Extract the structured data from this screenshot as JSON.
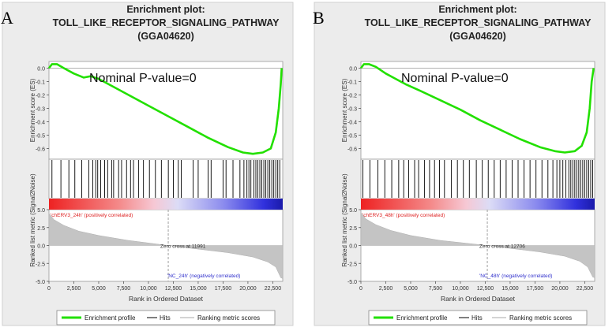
{
  "chart_data": [
    {
      "type": "line",
      "panel_letter": "A",
      "title": [
        "Enrichment plot:",
        "TOLL_LIKE_RECEPTOR_SIGNALING_PATHWAY",
        "(GGA04620)"
      ],
      "annotation": "Nominal P-value=0",
      "xlabel": "Rank in Ordered Dataset",
      "xlim": [
        0,
        23500
      ],
      "x_ticks": [
        "0",
        "2,500",
        "5,000",
        "7,500",
        "10,000",
        "12,500",
        "15,000",
        "17,500",
        "20,000",
        "22,500"
      ],
      "es_ylabel": "Enrichment score (ES)",
      "es_ylim": [
        -0.68,
        0.05
      ],
      "es_y_ticks": [
        "0.0",
        "-0.1",
        "-0.2",
        "-0.3",
        "-0.4",
        "-0.5",
        "-0.6"
      ],
      "es_x": [
        0,
        300,
        800,
        1500,
        2500,
        3500,
        4200,
        5000,
        6000,
        8000,
        10000,
        12000,
        14000,
        16000,
        18000,
        19500,
        20500,
        21500,
        22300,
        22800,
        23100,
        23300,
        23400
      ],
      "es_y": [
        0.0,
        0.03,
        0.03,
        0.0,
        -0.04,
        -0.07,
        -0.06,
        -0.08,
        -0.12,
        -0.2,
        -0.28,
        -0.36,
        -0.44,
        -0.52,
        -0.59,
        -0.63,
        -0.64,
        -0.63,
        -0.6,
        -0.48,
        -0.3,
        -0.12,
        0.0
      ],
      "hits": [
        300,
        1200,
        2000,
        2600,
        3300,
        4000,
        4400,
        4700,
        4900,
        5200,
        5600,
        5900,
        6300,
        6500,
        7000,
        7300,
        7800,
        8200,
        8500,
        9000,
        9500,
        10100,
        10700,
        11300,
        12000,
        12500,
        13000,
        13300,
        14500,
        15000,
        16000,
        16300,
        17500,
        17800,
        18500,
        19200,
        19600,
        19900,
        20100,
        20300,
        20600,
        20800,
        21000,
        21200,
        21400,
        21600,
        21800,
        22000,
        22200,
        22400,
        22600,
        22800,
        23000,
        23200
      ],
      "metric_ylabel": "Ranked list metric (Signal2Noise)",
      "metric_ylim": [
        -5.0,
        5.0
      ],
      "metric_y_ticks": [
        "5.0",
        "2.5",
        "0.0",
        "-2.5",
        "-5.0"
      ],
      "metric_x": [
        0,
        500,
        1500,
        3000,
        5000,
        8000,
        11991,
        15000,
        18000,
        20500,
        22000,
        22800,
        23300,
        23500
      ],
      "metric_y": [
        4.5,
        3.6,
        2.8,
        2.0,
        1.4,
        0.7,
        0.0,
        -0.5,
        -1.0,
        -1.6,
        -2.3,
        -3.0,
        -4.5,
        -4.6
      ],
      "zero_cross_x": 11991,
      "zero_cross_label": "Zero cross at 11991",
      "pos_label": "'chERV3_24h' (positively correlated)",
      "neg_label": "'NC_24h' (negatively correlated)",
      "legend": [
        "Enrichment profile",
        "Hits",
        "Ranking metric scores"
      ]
    },
    {
      "type": "line",
      "panel_letter": "B",
      "title": [
        "Enrichment plot:",
        "TOLL_LIKE_RECEPTOR_SIGNALING_PATHWAY",
        "(GGA04620)"
      ],
      "annotation": "Nominal P-value=0",
      "xlabel": "Rank in Ordered Dataset",
      "xlim": [
        0,
        23500
      ],
      "x_ticks": [
        "0",
        "2,500",
        "5,000",
        "7,500",
        "10,000",
        "12,500",
        "15,000",
        "17,500",
        "20,000",
        "22,500"
      ],
      "es_ylabel": "Enrichment score (ES)",
      "es_ylim": [
        -0.68,
        0.05
      ],
      "es_y_ticks": [
        "0.0",
        "-0.1",
        "-0.2",
        "-0.3",
        "-0.4",
        "-0.5",
        "-0.6"
      ],
      "es_x": [
        0,
        300,
        800,
        1500,
        2500,
        3500,
        4500,
        6000,
        8000,
        10000,
        12000,
        14000,
        16000,
        18000,
        19500,
        20500,
        21500,
        22200,
        22700,
        23000,
        23200,
        23400
      ],
      "es_y": [
        0.0,
        0.03,
        0.03,
        0.01,
        -0.04,
        -0.08,
        -0.12,
        -0.17,
        -0.24,
        -0.31,
        -0.39,
        -0.46,
        -0.53,
        -0.59,
        -0.62,
        -0.63,
        -0.62,
        -0.58,
        -0.48,
        -0.3,
        -0.1,
        0.0
      ],
      "hits": [
        200,
        900,
        1700,
        2400,
        3100,
        3800,
        4300,
        4800,
        5400,
        5800,
        6400,
        6900,
        7400,
        7900,
        8400,
        9100,
        9700,
        10300,
        10900,
        11600,
        12200,
        12800,
        13400,
        14000,
        14600,
        15200,
        15800,
        16400,
        17000,
        17600,
        18200,
        18800,
        19300,
        19700,
        20000,
        20300,
        20600,
        20900,
        21100,
        21300,
        21500,
        21700,
        21900,
        22100,
        22300,
        22500,
        22700,
        22900,
        23100,
        23300
      ],
      "metric_ylabel": "Ranked list metric (Signal2Noise)",
      "metric_ylim": [
        -5.0,
        5.0
      ],
      "metric_y_ticks": [
        "5.0",
        "2.5",
        "0.0",
        "-2.5",
        "-5.0"
      ],
      "metric_x": [
        0,
        500,
        1500,
        3000,
        5000,
        8000,
        12706,
        15000,
        18000,
        20500,
        22000,
        22800,
        23300,
        23500
      ],
      "metric_y": [
        4.6,
        3.7,
        2.9,
        2.1,
        1.4,
        0.7,
        0.0,
        -0.4,
        -0.9,
        -1.5,
        -2.2,
        -3.0,
        -4.4,
        -4.5
      ],
      "zero_cross_x": 12706,
      "zero_cross_label": "Zero cross at 12706",
      "pos_label": "'chERV3_48h' (positively correlated)",
      "neg_label": "'NC_48h' (negatively correlated)",
      "legend": [
        "Enrichment profile",
        "Hits",
        "Ranking metric scores"
      ]
    }
  ]
}
